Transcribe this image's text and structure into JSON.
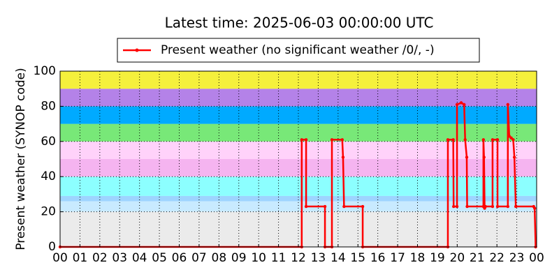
{
  "chart_data": {
    "type": "line",
    "title": "Latest time: 2025-06-03 00:00:00 UTC",
    "y_label": "Present weather (SYNOP code)",
    "xlim": [
      0,
      24
    ],
    "xticks": [
      {
        "value": 0,
        "label": "00"
      },
      {
        "value": 1,
        "label": "01"
      },
      {
        "value": 2,
        "label": "02"
      },
      {
        "value": 3,
        "label": "03"
      },
      {
        "value": 4,
        "label": "04"
      },
      {
        "value": 5,
        "label": "05"
      },
      {
        "value": 6,
        "label": "06"
      },
      {
        "value": 7,
        "label": "07"
      },
      {
        "value": 8,
        "label": "08"
      },
      {
        "value": 9,
        "label": "09"
      },
      10,
      11,
      12,
      13,
      14,
      15,
      16,
      17,
      18,
      19,
      20,
      21,
      22,
      23,
      {
        "value": 24,
        "label": "00"
      }
    ],
    "ylim": [
      0,
      100
    ],
    "yticks": [
      0,
      20,
      40,
      60,
      80,
      100
    ],
    "grid": true,
    "legend": "top-center",
    "bands": [
      {
        "from": 0,
        "to": 20,
        "color": "#ebebeb"
      },
      {
        "from": 20,
        "to": 26,
        "color": "#c8eaff"
      },
      {
        "from": 26,
        "to": 29,
        "color": "#9ed4ff"
      },
      {
        "from": 29,
        "to": 40,
        "color": "#8cffff"
      },
      {
        "from": 40,
        "to": 50,
        "color": "#f5b4f0"
      },
      {
        "from": 50,
        "to": 60,
        "color": "#ffd2fa"
      },
      {
        "from": 60,
        "to": 70,
        "color": "#78e878"
      },
      {
        "from": 70,
        "to": 80,
        "color": "#00aaff"
      },
      {
        "from": 80,
        "to": 90,
        "color": "#b482e8"
      },
      {
        "from": 90,
        "to": 100,
        "color": "#f5f03c"
      }
    ],
    "series": [
      {
        "name": "Present weather (no significant weather /0/, -)",
        "color": "#ff0000",
        "x": [
          0,
          12.17,
          12.17,
          12.39,
          12.39,
          13.34,
          13.34,
          13.69,
          13.69,
          14.21,
          14.25,
          14.3,
          15.24,
          15.24,
          19.53,
          19.53,
          19.8,
          19.82,
          19.99,
          19.99,
          20.2,
          20.35,
          20.4,
          20.48,
          20.5,
          21.32,
          21.32,
          21.35,
          21.38,
          21.42,
          21.78,
          21.78,
          22.03,
          22.03,
          22.55,
          22.55,
          22.62,
          22.72,
          22.82,
          22.88,
          22.95,
          23.85,
          23.9,
          23.95
        ],
        "values": [
          0,
          0,
          61,
          61,
          23,
          23,
          0,
          0,
          61,
          61,
          51,
          23,
          23,
          0,
          0,
          61,
          61,
          23,
          23,
          81,
          82,
          81,
          61,
          51,
          23,
          23,
          61,
          51,
          22,
          23,
          23,
          61,
          61,
          23,
          23,
          81,
          63,
          62,
          61,
          51,
          23,
          23,
          22,
          0
        ]
      }
    ]
  }
}
